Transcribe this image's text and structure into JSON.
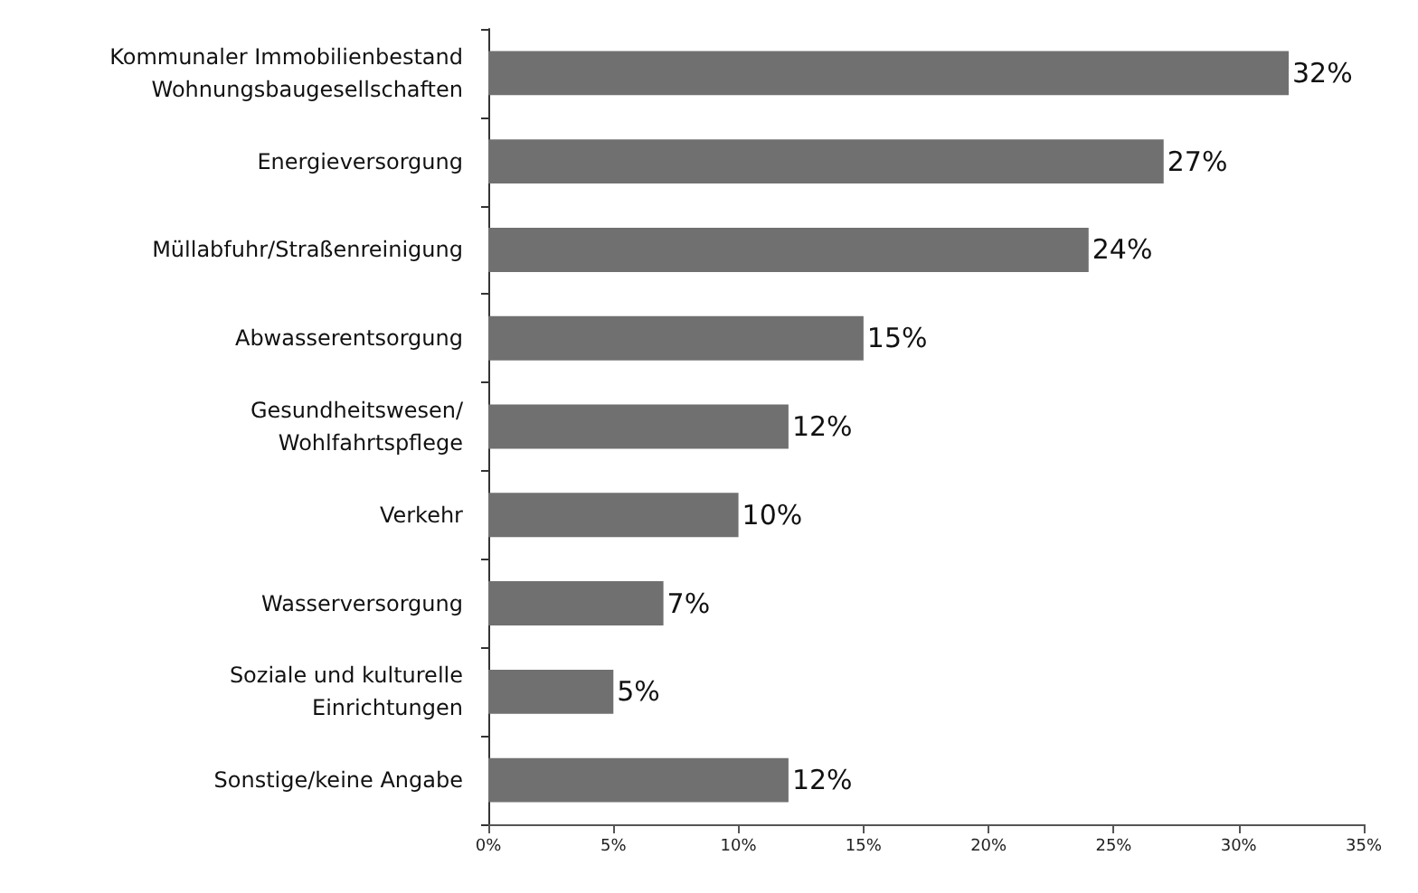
{
  "chart_data": {
    "type": "bar",
    "orientation": "horizontal",
    "categories": [
      "Kommunaler Immobilienbestand\nWohnungsbaugesellschaften",
      "Energieversorgung",
      "Müllabfuhr/Straßenreinigung",
      "Abwasserentsorgung",
      "Gesundheitswesen/\nWohlfahrtspflege",
      "Verkehr",
      "Wasserversorgung",
      "Soziale und kulturelle\nEinrichtungen",
      "Sonstige/keine Angabe"
    ],
    "values": [
      32,
      27,
      24,
      15,
      12,
      10,
      7,
      5,
      12
    ],
    "value_labels": [
      "32%",
      "27%",
      "24%",
      "15%",
      "12%",
      "10%",
      "7%",
      "5%",
      "12%"
    ],
    "color": "#707070",
    "xlim": [
      0,
      35
    ],
    "xticks": [
      {
        "value": 0,
        "label": "0%"
      },
      {
        "value": 5,
        "label": "5%"
      },
      {
        "value": 10,
        "label": "10%"
      },
      {
        "value": 15,
        "label": "15%"
      },
      {
        "value": 20,
        "label": "20%"
      },
      {
        "value": 25,
        "label": "25%"
      },
      {
        "value": 30,
        "label": "30%"
      },
      {
        "value": 35,
        "label": "35%"
      }
    ],
    "grid": false
  }
}
